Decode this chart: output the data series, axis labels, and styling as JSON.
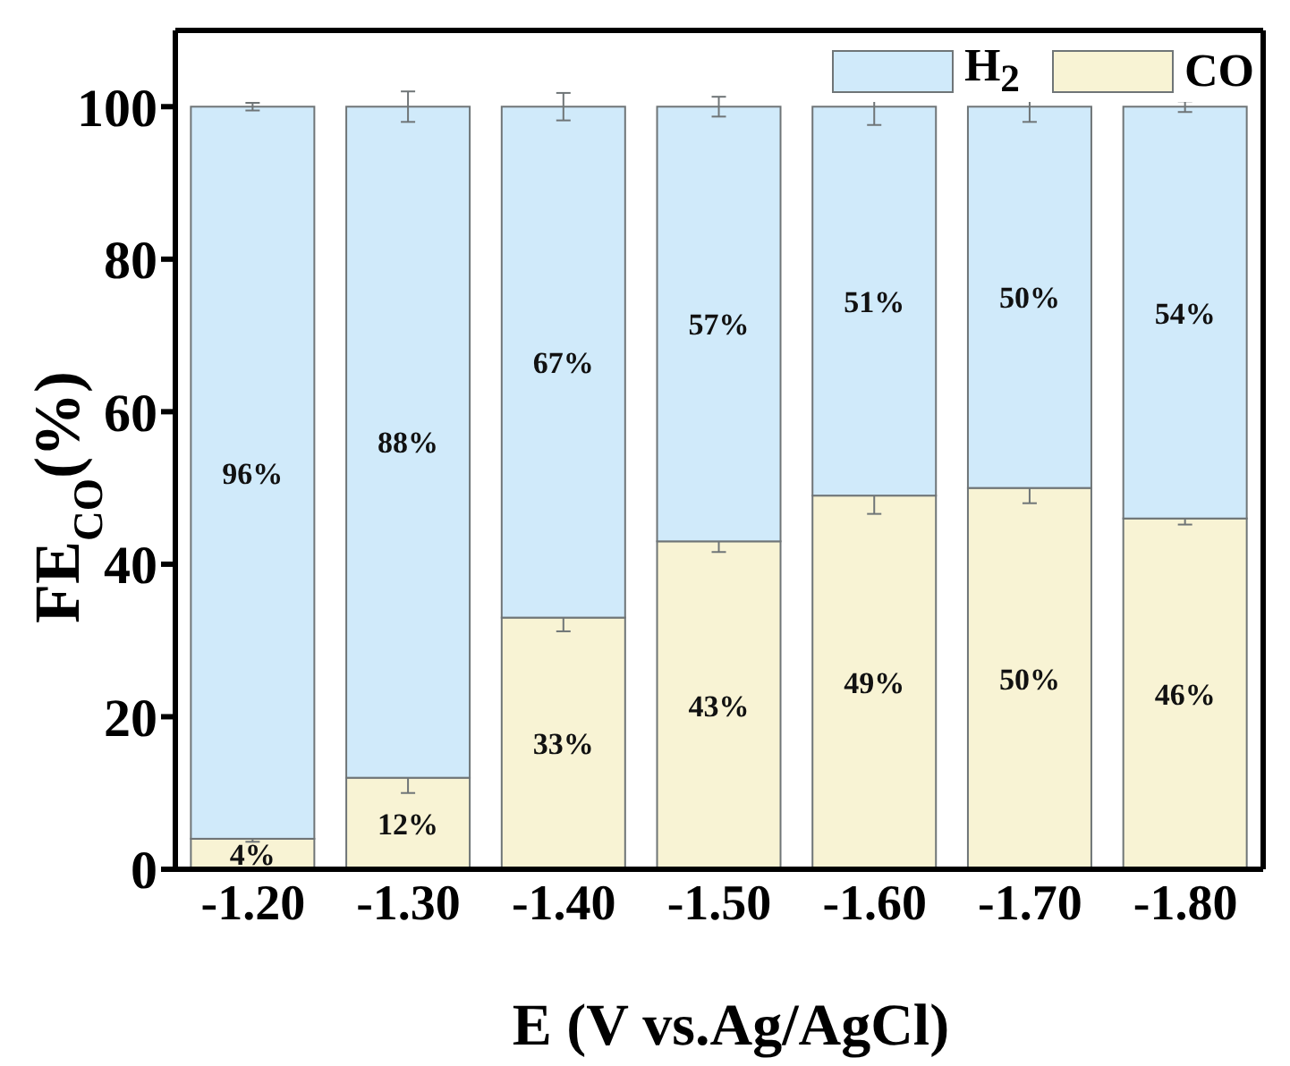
{
  "chart_data": {
    "type": "bar",
    "stacked": true,
    "xlabel": "E (V vs.Ag/AgCl)",
    "ylabel": "FE$_{CO}$(%)",
    "categories": [
      "-1.20",
      "-1.30",
      "-1.40",
      "-1.50",
      "-1.60",
      "-1.70",
      "-1.80"
    ],
    "series": [
      {
        "name": "CO",
        "color": "#f8f3d4",
        "values": [
          4,
          12,
          33,
          43,
          49,
          50,
          46
        ],
        "errors": [
          0.4,
          2,
          1.8,
          1.4,
          2.4,
          2,
          0.8
        ],
        "value_labels": [
          "4%",
          "12%",
          "33%",
          "43%",
          "49%",
          "50%",
          "46%"
        ]
      },
      {
        "name": "H$_{2}$",
        "color": "#d0eafa",
        "values": [
          96,
          88,
          67,
          57,
          51,
          50,
          54
        ],
        "errors": [
          0.5,
          2,
          1.8,
          1.3,
          2.4,
          2,
          0.7
        ],
        "value_labels": [
          "96%",
          "88%",
          "67%",
          "57%",
          "51%",
          "50%",
          "54%"
        ]
      }
    ],
    "ylim": [
      0,
      110
    ],
    "yticks": [
      0,
      20,
      40,
      60,
      80,
      100
    ],
    "legend": "top right"
  }
}
